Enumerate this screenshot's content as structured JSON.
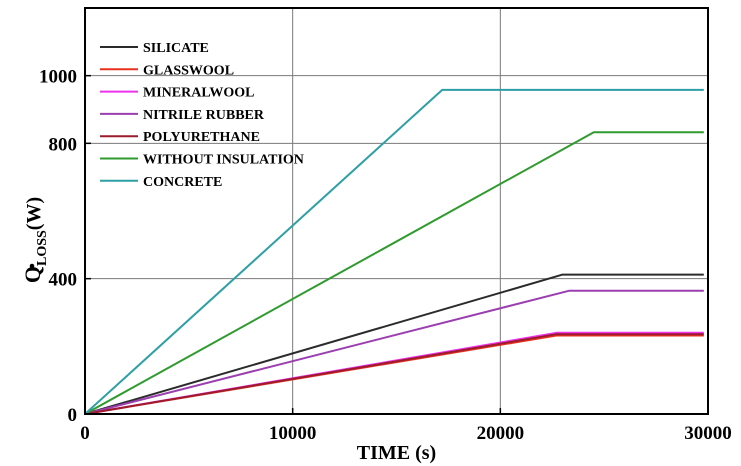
{
  "chart_data": {
    "type": "line",
    "title": "",
    "xlabel": "TIME (s)",
    "ylabel_main": "Q",
    "ylabel_sub": "LOSS",
    "ylabel_unit": "(W)",
    "xlim": [
      0,
      30000
    ],
    "ylim": [
      0,
      1200
    ],
    "x_ticks": [
      0,
      10000,
      20000,
      30000
    ],
    "y_ticks": [
      0,
      400,
      800,
      1000
    ],
    "grid": true,
    "legend_position": "top-left",
    "series": [
      {
        "name": "SILICATE",
        "color": "#2b2b2b",
        "x": [
          0,
          23000,
          29800
        ],
        "y": [
          0,
          412,
          412
        ]
      },
      {
        "name": "GLASSWOOL",
        "color": "#e8321f",
        "x": [
          0,
          22700,
          29800
        ],
        "y": [
          0,
          232,
          232
        ]
      },
      {
        "name": "MINERALWOOL",
        "color": "#ee33ee",
        "x": [
          0,
          22700,
          29800
        ],
        "y": [
          0,
          240,
          240
        ]
      },
      {
        "name": "NITRILE RUBBER",
        "color": "#9b3fb0",
        "x": [
          0,
          23300,
          29800
        ],
        "y": [
          0,
          364,
          364
        ]
      },
      {
        "name": "POLYURETHANE",
        "color": "#9c1b2c",
        "x": [
          0,
          22700,
          29800
        ],
        "y": [
          0,
          236,
          236
        ]
      },
      {
        "name": "WITHOUT INSULATION",
        "color": "#2f9b2f",
        "x": [
          0,
          24500,
          29800
        ],
        "y": [
          0,
          833,
          833
        ]
      },
      {
        "name": "CONCRETE",
        "color": "#2f9fa6",
        "x": [
          0,
          17200,
          29800
        ],
        "y": [
          0,
          958,
          958
        ]
      }
    ]
  }
}
